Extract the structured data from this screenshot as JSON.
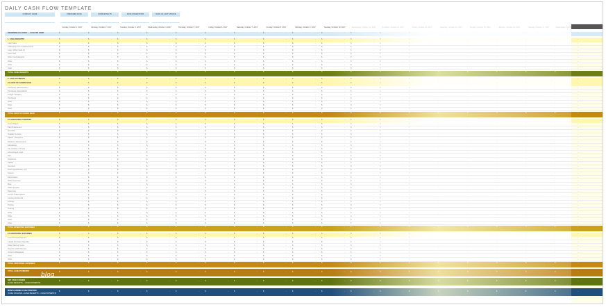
{
  "title": "DAILY CASH FLOW TEMPLATE",
  "header_fields": [
    "COMPANY NAME",
    "PREPARED DATE",
    "COMPLETED BY",
    "DATE OPERATIONS",
    "DATE OF LAST UPDATE"
  ],
  "dates": [
    "Sunday, October 1, 2017",
    "Monday, October 2, 2017",
    "Tuesday, October 3, 2017",
    "Wednesday, October 4, 2017",
    "Thursday, October 5, 2017",
    "Friday, October 6, 2017",
    "Saturday, October 7, 2017",
    "Sunday, October 8, 2017",
    "Monday, October 9, 2017",
    "Tuesday, October 10, 2017",
    "Wednesday, October 11, 2017",
    "Thursday, October 12, 2017",
    "Friday, October 13, 2017",
    "Saturday, October 14, 2017",
    "Sunday, October 15, 2017",
    "Monday, October 16, 2017",
    "Tuesday, October 17, 2017",
    "Wednesday, October 18, 2017"
  ],
  "currency_symbol": "$",
  "empty_value": "-",
  "beginning_balance": "BEGINNING BALANCE — CASH ON HAND",
  "sections": {
    "receipts_header": "1. CASH RECEIPTS",
    "receipts_items": [
      "Cash Sales",
      "Collections from Credit Accounts",
      "Loan / Other Cash Inj.",
      "Asset Sale",
      "Other Cash Receipts",
      "Other",
      "Other",
      "Other"
    ],
    "receipts_total": "TOTAL CASH RECEIPTS",
    "payments_header": "2. CASH PAYMENTS",
    "cogs_header": "2.1 COST OF GOODS SOLD",
    "cogs_items": [
      "Purchases (Merchandise)",
      "Purchases (Specialized)",
      "Freight / Shipping",
      "Purchases",
      "Other",
      "Other",
      "Other"
    ],
    "cogs_total": "TOTAL COST OF GOODS SOLD",
    "opex_header": "2.2 OPERATING EXPENSES",
    "opex_items": [
      "Gross Wages",
      "Payroll Expenses",
      "Insurance",
      "Outside Services",
      "Utilities / Telephone",
      "Repairs & Maintenance",
      "Advertising",
      "Car, Delivery & Travel",
      "Accounting & Legal",
      "Rent",
      "Telephone",
      "Utilities",
      "Insurance",
      "Taxes (Real Estate, etc.)",
      "Interest",
      "Depreciation",
      "Other Expenses",
      "Misc.",
      "Office Supplies",
      "Bank Fees",
      "Dues & Subscriptions",
      "Licenses & Permits",
      "Postage",
      "Printing",
      "Training",
      "Other",
      "Other",
      "Other",
      "Other"
    ],
    "opex_total": "TOTAL OPERATING EXPENSES",
    "add_header": "2.3 ADDITIONAL EXPENSES",
    "add_items": [
      "Loan Principal Payment",
      "Capital Purchase (Specify)",
      "Other Start-Up Costs",
      "Reserve and/or Escrow",
      "Owner's Withdrawal",
      "Other",
      "Other"
    ],
    "add_total": "TOTAL ADDITIONAL EXPENSES",
    "total_payments": "TOTAL CASH PAYMENTS",
    "net_change": "NET CASH CHANGE",
    "net_change_sub": "(CASH RECEIPTS − CASH PAYMENTS)",
    "ending": "MONTH ENDING CASH POSITION",
    "ending_sub": "(CASH ON HAND + CASH RECEIPTS − CASH PAYMENTS)"
  },
  "watermark": "blog",
  "colors": {
    "section_fill": "#fff7b0",
    "receipts_total": "#6d7f12",
    "cogs_total": "#c28a12",
    "opex_total": "#c9a21a",
    "add_total": "#c38b12",
    "total_payments": "#b77d10",
    "net_change": "#5f7310",
    "ending": "#1f4f7d",
    "header_fill": "#cfe6f5"
  }
}
